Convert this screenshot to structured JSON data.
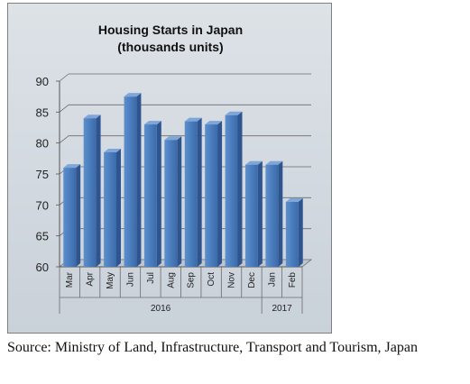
{
  "chart_data": {
    "type": "bar",
    "title": "Housing Starts in Japan",
    "subtitle": "(thousands units)",
    "categories": [
      "Mar",
      "Apr",
      "May",
      "Jun",
      "Jul",
      "Aug",
      "Sep",
      "Oct",
      "Nov",
      "Dec",
      "Jan",
      "Feb"
    ],
    "values": [
      76,
      84,
      78.5,
      87.5,
      83,
      80.5,
      83.5,
      83,
      84.5,
      76.5,
      76.5,
      70.5
    ],
    "year_groups": [
      {
        "label": "2016",
        "start": 0,
        "end": 9
      },
      {
        "label": "2017",
        "start": 10,
        "end": 11
      }
    ],
    "ylim": [
      60,
      90
    ],
    "yticks": [
      60,
      65,
      70,
      75,
      80,
      85,
      90
    ],
    "grid": true,
    "legend": false,
    "bar_color": "#4f81bd",
    "background_color": "#d3d9df"
  },
  "source": "Source: Ministry of Land, Infrastructure, Transport and Tourism, Japan"
}
